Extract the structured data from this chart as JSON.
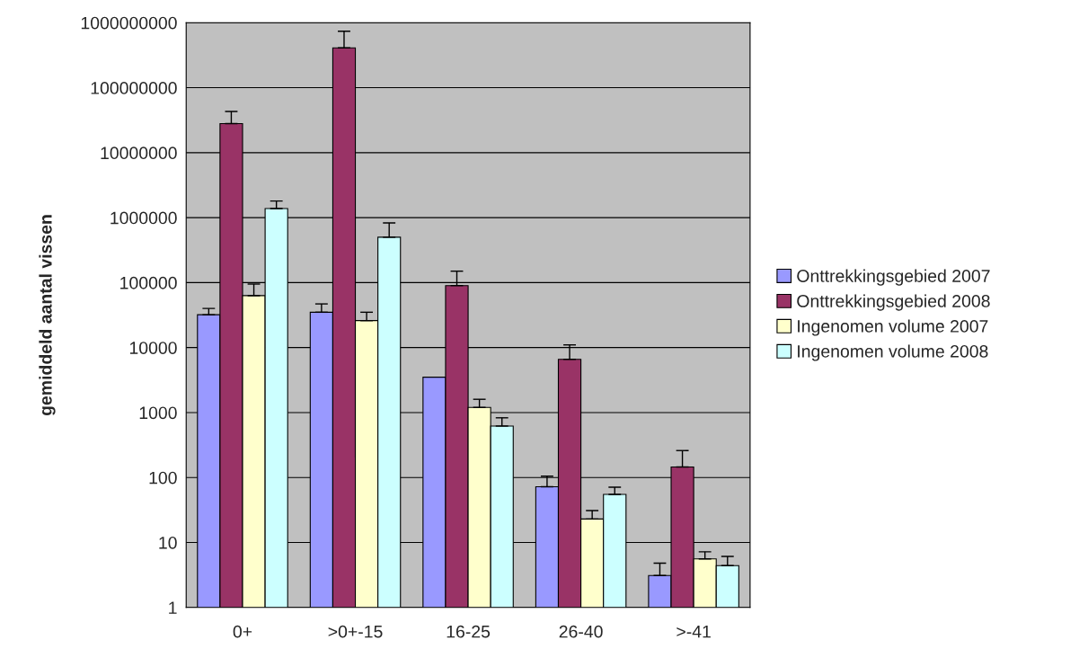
{
  "chart_data": {
    "type": "bar",
    "ylabel": "gemiddeld aantal vissen",
    "categories": [
      "0+",
      ">0+-15",
      "16-25",
      "26-40",
      ">-41"
    ],
    "series": [
      {
        "name": "Onttrekkingsgebied 2007",
        "color": "#9999ff",
        "values": [
          32000,
          35000,
          3500,
          72,
          3.1
        ],
        "errors": [
          [
            32000,
            40000
          ],
          [
            35000,
            47000
          ],
          null,
          [
            72,
            105
          ],
          [
            3.1,
            4.8
          ]
        ]
      },
      {
        "name": "Onttrekkingsgebied 2008",
        "color": "#993366",
        "values": [
          28000000,
          410000000,
          90000,
          6600,
          145
        ],
        "errors": [
          [
            28000000,
            43000000
          ],
          [
            410000000,
            740000000
          ],
          [
            90000,
            150000
          ],
          [
            6600,
            11000
          ],
          [
            145,
            260
          ]
        ]
      },
      {
        "name": "Ingenomen volume 2007",
        "color": "#ffffcc",
        "values": [
          63000,
          26000,
          1200,
          23,
          5.6
        ],
        "errors": [
          [
            63000,
            95000
          ],
          [
            26000,
            35000
          ],
          [
            1200,
            1600
          ],
          [
            23,
            31
          ],
          [
            5.6,
            7.2
          ]
        ]
      },
      {
        "name": "Ingenomen volume 2008",
        "color": "#ccffff",
        "values": [
          1380000,
          500000,
          620,
          55,
          4.4
        ],
        "errors": [
          [
            1380000,
            1800000
          ],
          [
            500000,
            830000
          ],
          [
            620,
            830
          ],
          [
            55,
            71
          ],
          [
            4.4,
            6.1
          ]
        ]
      }
    ],
    "log": "y",
    "ylim": [
      1,
      1000000000
    ],
    "yticks": [
      1,
      10,
      100,
      1000,
      10000,
      100000,
      1000000,
      10000000,
      100000000,
      1000000000
    ],
    "grid": "y",
    "legend": "right"
  }
}
